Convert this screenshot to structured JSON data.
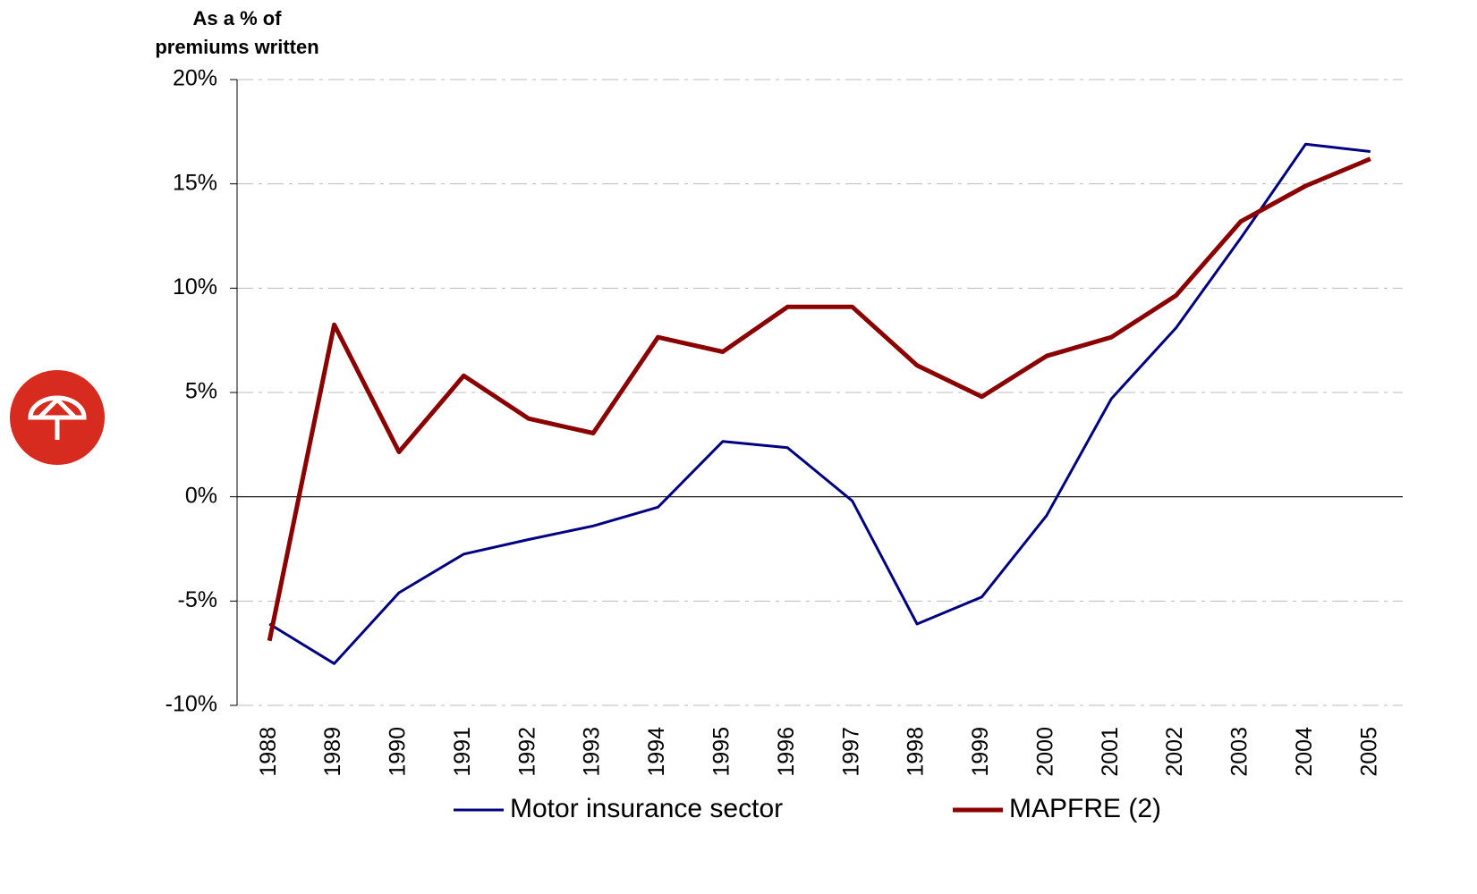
{
  "chart_data": {
    "type": "line",
    "ylabel": [
      "As a % of",
      "premiums written"
    ],
    "categories": [
      "1988",
      "1989",
      "1990",
      "1991",
      "1992",
      "1993",
      "1994",
      "1995",
      "1996",
      "1997",
      "1998",
      "1999",
      "2000",
      "2001",
      "2002",
      "2003",
      "2004",
      "2005"
    ],
    "series": [
      {
        "name": "Motor insurance sector",
        "color": "#000080",
        "values": [
          -6.1,
          -8.0,
          -4.6,
          -2.75,
          -2.05,
          -1.4,
          -0.5,
          2.65,
          2.35,
          -0.2,
          -6.1,
          -4.8,
          -0.9,
          4.7,
          8.1,
          12.4,
          16.9,
          16.55
        ]
      },
      {
        "name": "MAPFRE (2)",
        "color": "#8b0000",
        "values": [
          -6.9,
          8.25,
          2.15,
          5.8,
          3.75,
          3.05,
          7.65,
          6.95,
          9.1,
          9.1,
          6.3,
          4.8,
          6.75,
          7.65,
          9.65,
          13.2,
          14.9,
          16.2
        ]
      }
    ],
    "ylim": [
      -10,
      20
    ],
    "yticks": [
      {
        "value": -10,
        "label": "-10%"
      },
      {
        "value": -5,
        "label": "-5%"
      },
      {
        "value": 0,
        "label": "0%"
      },
      {
        "value": 5,
        "label": "5%"
      },
      {
        "value": 10,
        "label": "10%"
      },
      {
        "value": 15,
        "label": "15%"
      },
      {
        "value": 20,
        "label": "20%"
      }
    ],
    "grid": true,
    "legend": "bottom"
  }
}
